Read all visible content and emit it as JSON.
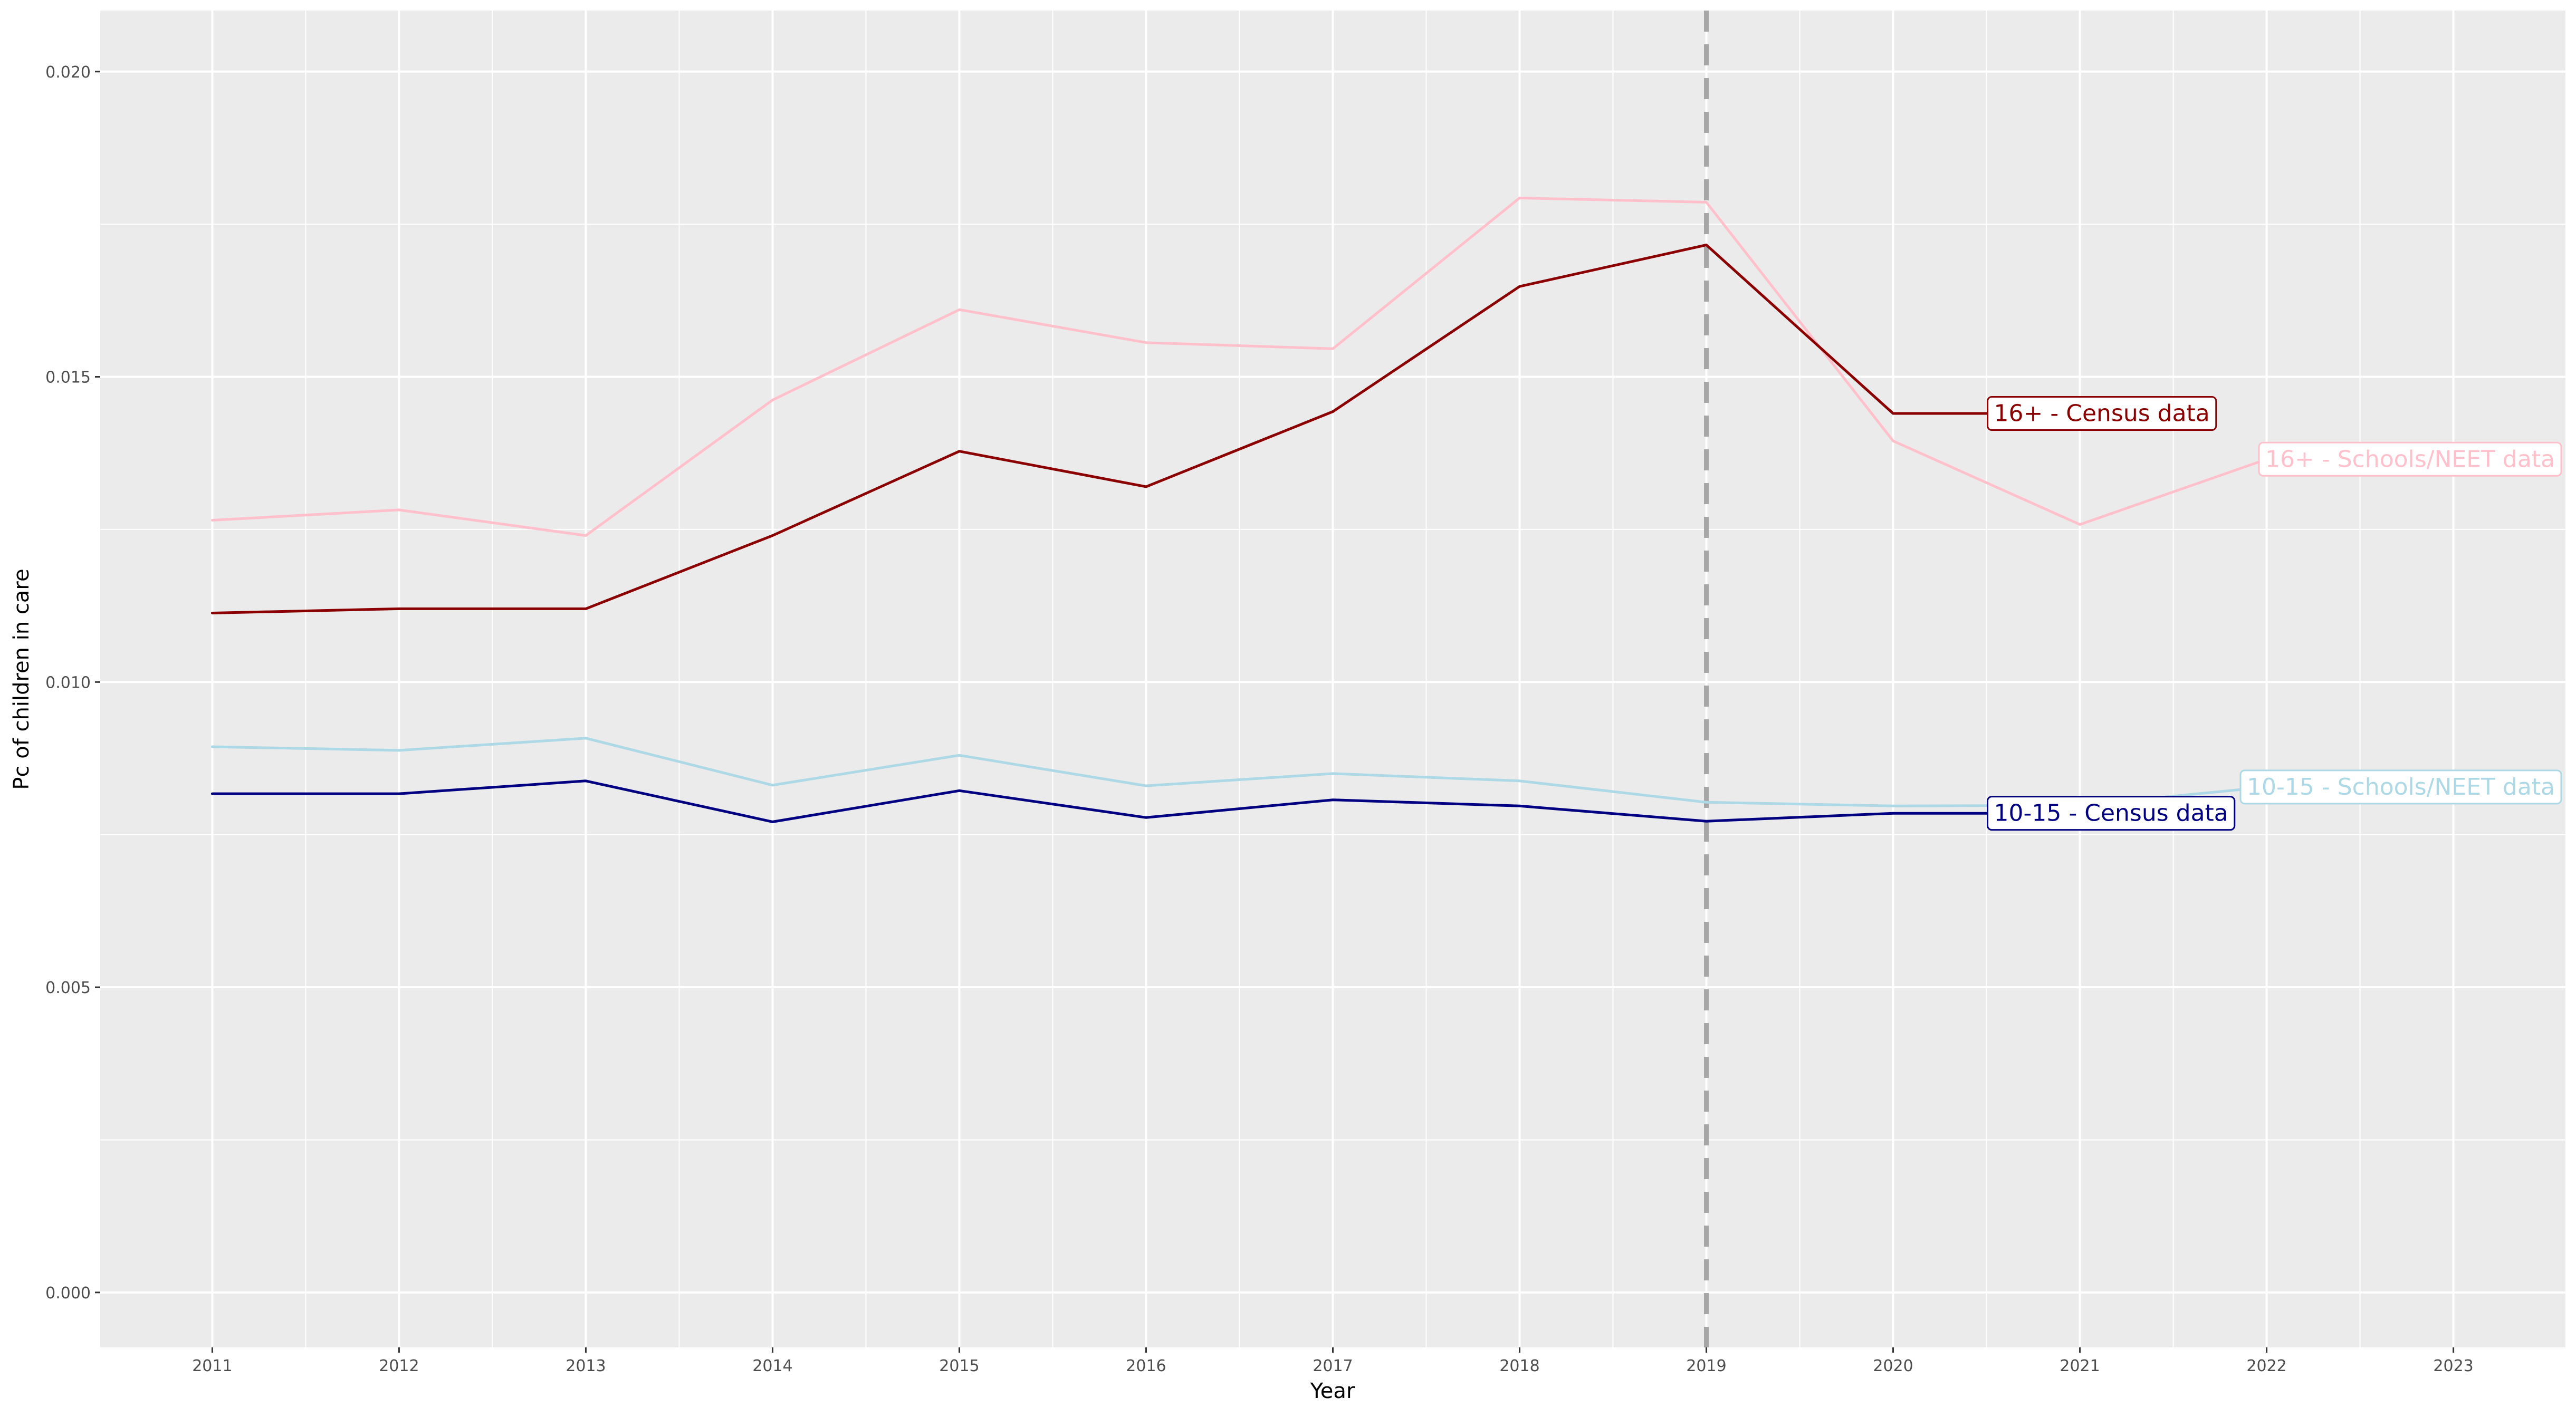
{
  "chart_data": {
    "type": "line",
    "xlabel": "Year",
    "ylabel": "Pc of children in care",
    "xlim": [
      2010.4,
      2023.6
    ],
    "ylim": [
      -0.0009,
      0.021
    ],
    "x_ticks": [
      "2011",
      "2012",
      "2013",
      "2014",
      "2015",
      "2016",
      "2017",
      "2018",
      "2019",
      "2020",
      "2021",
      "2022",
      "2023"
    ],
    "y_ticks": [
      "0.000",
      "0.005",
      "0.010",
      "0.015",
      "0.020"
    ],
    "grid": true,
    "panel_background": "#ebebeb",
    "grid_color": "#ffffff",
    "vline": {
      "x": 2019,
      "color": "#a6a6a6",
      "style": "dashed"
    },
    "series": [
      {
        "name": "16+ - Schools/NEET data",
        "color": "#ffc0cb",
        "x": [
          2011,
          2012,
          2013,
          2014,
          2015,
          2016,
          2017,
          2018,
          2019,
          2020,
          2021,
          2022
        ],
        "y": [
          0.01265,
          0.01282,
          0.0124,
          0.01462,
          0.0161,
          0.01556,
          0.01546,
          0.01793,
          0.01786,
          0.01395,
          0.01258,
          0.01365
        ]
      },
      {
        "name": "16+ - Census data",
        "color": "#8b0000",
        "x": [
          2011,
          2012,
          2013,
          2014,
          2015,
          2016,
          2017,
          2018,
          2019,
          2020,
          2020.5
        ],
        "y": [
          0.01113,
          0.0112,
          0.0112,
          0.0124,
          0.01378,
          0.0132,
          0.01443,
          0.01648,
          0.01716,
          0.0144,
          0.0144
        ]
      },
      {
        "name": "10-15 - Schools/NEET data",
        "color": "#add8e6",
        "x": [
          2011,
          2012,
          2013,
          2014,
          2015,
          2016,
          2017,
          2018,
          2019,
          2020,
          2021,
          2022
        ],
        "y": [
          0.00894,
          0.00888,
          0.00908,
          0.00831,
          0.0088,
          0.0083,
          0.0085,
          0.00838,
          0.00803,
          0.00797,
          0.00798,
          0.00828
        ]
      },
      {
        "name": "10-15 - Census data",
        "color": "#000080",
        "x": [
          2011,
          2012,
          2013,
          2014,
          2015,
          2016,
          2017,
          2018,
          2019,
          2020,
          2020.5
        ],
        "y": [
          0.00817,
          0.00817,
          0.00838,
          0.00771,
          0.00822,
          0.00778,
          0.00807,
          0.00797,
          0.00772,
          0.00785,
          0.00785
        ]
      }
    ],
    "labels": [
      {
        "text": "16+ - Census data",
        "series": 1,
        "x": 2020.5,
        "y": 0.0144,
        "anchor": "start"
      },
      {
        "text": "16+ - Schools/NEET data",
        "series": 0,
        "x": 2022,
        "y": 0.01365,
        "anchor": "start"
      },
      {
        "text": "10-15 - Census data",
        "series": 3,
        "x": 2020.5,
        "y": 0.00785,
        "anchor": "start"
      },
      {
        "text": "10-15 - Schools/NEET data",
        "series": 2,
        "x": 2022,
        "y": 0.00828,
        "anchor": "start"
      }
    ]
  }
}
